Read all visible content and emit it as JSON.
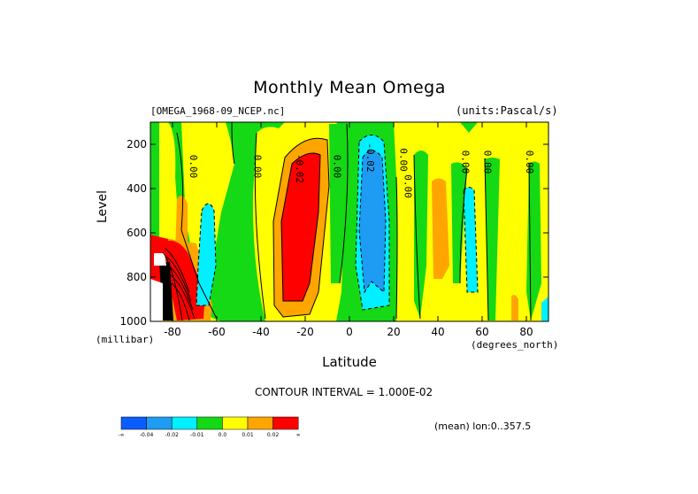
{
  "chart_data": {
    "type": "heatmap",
    "title": "Monthly Mean Omega",
    "subtitle_left": "[OMEGA_1968-09_NCEP.nc]",
    "subtitle_right": "(units:Pascal/s)",
    "xlabel": "Latitude",
    "xunit": "(degrees_north)",
    "ylabel": "Level",
    "yunit": "(millibar)",
    "xlim": [
      -90,
      90
    ],
    "ylim": [
      1000,
      100
    ],
    "xticks": [
      -80,
      -60,
      -40,
      -20,
      0,
      20,
      40,
      60,
      80
    ],
    "yticks": [
      200,
      400,
      600,
      800,
      1000
    ],
    "contour_interval_text": "CONTOUR INTERVAL = 1.000E-02",
    "footnote": "(mean) lon:0..357.5",
    "contour_labels": [
      "0.00",
      "0.00",
      "-0.02",
      "0.00",
      "-0.02",
      "0.00",
      "0.00",
      "0.00",
      "0.00",
      "0.00"
    ],
    "colorbar": {
      "labels": [
        "-∞",
        "-0.04",
        "-0.02",
        "-0.01",
        "0.0",
        "0.01",
        "0.02",
        "∞"
      ],
      "colors": [
        "#0a5cff",
        "#1e9bf2",
        "#00f0ff",
        "#14d914",
        "#ffff00",
        "#ffa500",
        "#ff0000"
      ]
    },
    "approximate_features": [
      {
        "lat_range": [
          -75,
          -66
        ],
        "p_range": [
          680,
          1000
        ],
        "value_class": ">0.02",
        "color": "#ff0000"
      },
      {
        "lat_range": [
          -68,
          -62
        ],
        "p_range": [
          450,
          1000
        ],
        "value_class": "-0.02..-0.01",
        "color": "#00f0ff"
      },
      {
        "lat_range": [
          -33,
          -16
        ],
        "p_range": [
          280,
          940
        ],
        "value_class": ">0.02",
        "color": "#ff0000"
      },
      {
        "lat_range": [
          -37,
          -13
        ],
        "p_range": [
          200,
          970
        ],
        "value_class": "0.01..0.02",
        "color": "#ffa500"
      },
      {
        "lat_range": [
          2,
          21
        ],
        "p_range": [
          150,
          1000
        ],
        "value_class": "-0.04..-0.02",
        "color": "#1e9bf2"
      },
      {
        "lat_range": [
          40,
          46
        ],
        "p_range": [
          380,
          880
        ],
        "value_class": "0.01..0.02",
        "color": "#ffa500"
      },
      {
        "lat_range": [
          51,
          57
        ],
        "p_range": [
          420,
          890
        ],
        "value_class": "-0.02..-0.01",
        "color": "#00f0ff"
      }
    ]
  }
}
